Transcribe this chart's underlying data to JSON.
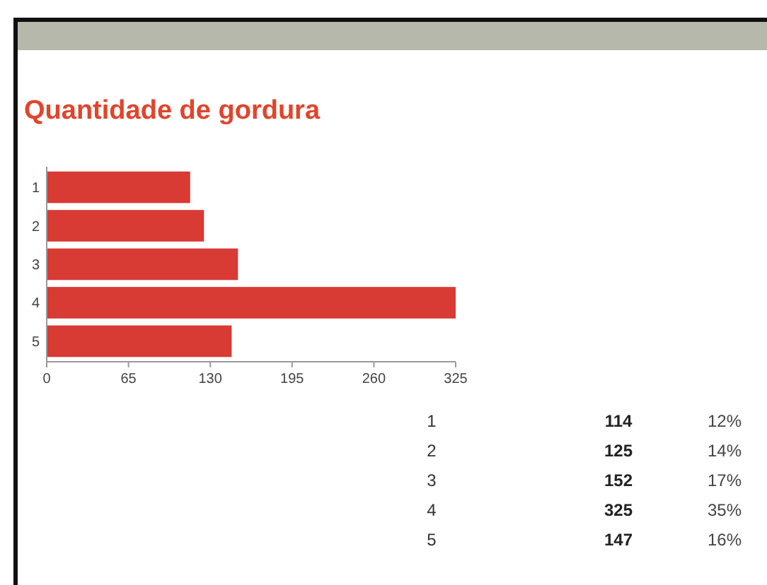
{
  "chart_data": {
    "type": "bar",
    "orientation": "horizontal",
    "title": "Quantidade de gordura",
    "categories": [
      "1",
      "2",
      "3",
      "4",
      "5"
    ],
    "values": [
      114,
      125,
      152,
      325,
      147
    ],
    "color": "#d83a34",
    "xlim": [
      0,
      325
    ],
    "xticks": [
      0,
      65,
      130,
      195,
      260,
      325
    ],
    "annotations": [
      "114",
      "12%",
      "125",
      "14%",
      "152",
      "17%",
      "325",
      "35%",
      "147",
      "16%"
    ]
  }
}
